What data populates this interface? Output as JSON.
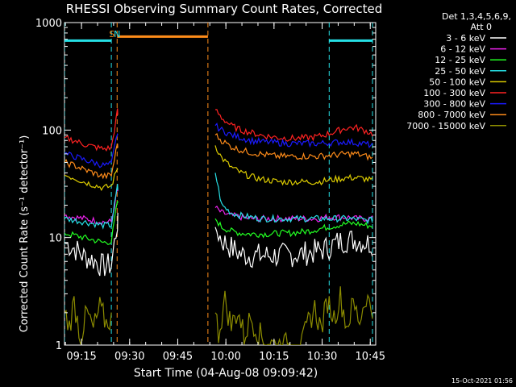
{
  "chart_data": {
    "type": "line",
    "title": "RHESSI Observing Summary Count Rates, Corrected",
    "xlabel": "Start Time (04-Aug-08 09:09:42)",
    "ylabel": "Corrected Count Rate (s⁻¹ detector⁻¹)",
    "x_unit": "minutes since 09:09:42",
    "xlim": [
      0,
      97
    ],
    "ylim": [
      1,
      1000
    ],
    "yscale": "log",
    "x_ticks": [
      {
        "v": 5.3,
        "label": "09:15"
      },
      {
        "v": 20.3,
        "label": "09:30"
      },
      {
        "v": 35.3,
        "label": "09:45"
      },
      {
        "v": 50.3,
        "label": "10:00"
      },
      {
        "v": 65.3,
        "label": "10:15"
      },
      {
        "v": 80.3,
        "label": "10:30"
      },
      {
        "v": 95.3,
        "label": "10:45"
      }
    ],
    "y_ticks": [
      {
        "v": 1,
        "label": "1"
      },
      {
        "v": 10,
        "label": "10"
      },
      {
        "v": 100,
        "label": "100"
      },
      {
        "v": 1000,
        "label": "1000"
      }
    ],
    "legend_header": [
      "Det 1,3,4,5,6,9,",
      "Att 0"
    ],
    "legend_position": "outside-right",
    "markers": [
      {
        "label": "S",
        "x": 14.8,
        "color": "#ff8c1a"
      },
      {
        "label": "N",
        "x": 16.4,
        "color": "#26e0e6"
      }
    ],
    "vlines": [
      {
        "x": 0.0,
        "color": "#26e0e6"
      },
      {
        "x": 14.6,
        "color": "#26e0e6"
      },
      {
        "x": 16.4,
        "color": "#ff8c1a"
      },
      {
        "x": 44.7,
        "color": "#ff8c1a"
      },
      {
        "x": 82.5,
        "color": "#26e0e6"
      },
      {
        "x": 96.0,
        "color": "#26e0e6"
      }
    ],
    "segments": [
      {
        "y": 680,
        "x0": 0,
        "x1": 14.6,
        "color": "#26e0e6"
      },
      {
        "y": 740,
        "x0": 16.4,
        "x1": 44.7,
        "color": "#ff8c1a"
      },
      {
        "y": 680,
        "x0": 82.5,
        "x1": 96.0,
        "color": "#26e0e6"
      }
    ],
    "series": [
      {
        "name": "3 - 6 keV",
        "color": "#ffffff",
        "x": [
          0,
          3,
          6,
          9,
          12,
          14.6,
          16.5,
          16.6,
          47,
          49,
          52,
          55,
          58,
          61,
          64,
          67,
          70,
          73,
          76,
          79,
          82,
          85,
          88,
          91,
          94,
          96
        ],
        "y": [
          9,
          8,
          6.7,
          6.2,
          5.4,
          5.6,
          14,
          13,
          12.5,
          9.5,
          8,
          7,
          6.8,
          6.8,
          6.8,
          6.8,
          6.9,
          7,
          7.2,
          7.5,
          8,
          9,
          9.5,
          9.5,
          9,
          8.8
        ]
      },
      {
        "name": "6 - 12 keV",
        "color": "#ee22ee",
        "x": [
          0,
          3,
          6,
          9,
          12,
          14.6,
          16.5,
          16.6,
          47,
          49,
          52,
          55,
          58,
          61,
          64,
          67,
          70,
          73,
          76,
          79,
          82,
          85,
          88,
          91,
          94,
          96
        ],
        "y": [
          16,
          15.5,
          15,
          14.5,
          14,
          14,
          28,
          27,
          19,
          17,
          16,
          15.5,
          15,
          15,
          15,
          15,
          15,
          15,
          15,
          15,
          15.5,
          15.5,
          15.5,
          15,
          15,
          15
        ]
      },
      {
        "name": "12 - 25 keV",
        "color": "#22ff22",
        "x": [
          0,
          3,
          6,
          9,
          12,
          14.6,
          16.5,
          16.6,
          47,
          49,
          52,
          55,
          58,
          61,
          64,
          67,
          70,
          73,
          76,
          79,
          82,
          85,
          88,
          91,
          94,
          96
        ],
        "y": [
          11,
          10.5,
          10,
          9.5,
          9,
          9.2,
          22,
          20,
          15,
          12.5,
          11.5,
          11,
          10.8,
          10.8,
          10.8,
          11,
          11,
          11.2,
          11.5,
          12,
          12.5,
          13,
          13.5,
          13.5,
          13,
          12.8
        ]
      },
      {
        "name": "25 - 50 keV",
        "color": "#26e0e6",
        "x": [
          0,
          3,
          6,
          9,
          12,
          14.6,
          16.5,
          16.6,
          47,
          49,
          52,
          55,
          58,
          61,
          64,
          67,
          70,
          73,
          76,
          79,
          82,
          85,
          88,
          91,
          94,
          96
        ],
        "y": [
          15,
          14.5,
          14,
          13.5,
          13,
          13,
          30,
          28,
          40,
          20,
          17,
          16,
          15.5,
          15,
          15,
          15,
          15,
          15,
          15,
          15,
          15,
          15,
          15,
          14.8,
          14.5,
          14.5
        ]
      },
      {
        "name": "50 - 100 keV",
        "color": "#ddcc00",
        "x": [
          0,
          3,
          6,
          9,
          12,
          14.6,
          16.5,
          16.6,
          47,
          49,
          52,
          55,
          58,
          61,
          64,
          67,
          70,
          73,
          76,
          79,
          82,
          85,
          88,
          91,
          94,
          96
        ],
        "y": [
          38,
          36,
          33,
          31,
          29,
          30,
          45,
          44,
          72,
          55,
          45,
          40,
          37,
          35,
          34,
          33,
          33,
          33,
          33,
          33,
          34,
          35,
          36,
          36,
          35,
          34
        ]
      },
      {
        "name": "100 - 300 keV",
        "color": "#ff2222",
        "x": [
          0,
          3,
          6,
          9,
          12,
          14.6,
          16.5,
          16.6,
          47,
          49,
          52,
          55,
          58,
          61,
          64,
          67,
          70,
          73,
          76,
          79,
          82,
          85,
          88,
          91,
          94,
          96
        ],
        "y": [
          85,
          80,
          74,
          70,
          67,
          68,
          150,
          140,
          155,
          130,
          110,
          100,
          95,
          90,
          87,
          85,
          84,
          84,
          85,
          87,
          92,
          98,
          105,
          105,
          98,
          92
        ]
      },
      {
        "name": "300 - 800 keV",
        "color": "#1a1aff",
        "x": [
          0,
          3,
          6,
          9,
          12,
          14.6,
          16.5,
          16.6,
          47,
          49,
          52,
          55,
          58,
          61,
          64,
          67,
          70,
          73,
          76,
          79,
          82,
          85,
          88,
          91,
          94,
          96
        ],
        "y": [
          60,
          57,
          53,
          50,
          47,
          48,
          95,
          90,
          110,
          100,
          90,
          85,
          80,
          78,
          77,
          76,
          75,
          75,
          75,
          75,
          76,
          77,
          78,
          76,
          74,
          72
        ]
      },
      {
        "name": "800 - 7000 keV",
        "color": "#ff8c1a",
        "x": [
          0,
          3,
          6,
          9,
          12,
          14.6,
          16.5,
          16.6,
          47,
          49,
          52,
          55,
          58,
          61,
          64,
          67,
          70,
          73,
          76,
          79,
          82,
          85,
          88,
          91,
          94,
          96
        ],
        "y": [
          50,
          47,
          43,
          40,
          37,
          38,
          75,
          72,
          90,
          80,
          70,
          65,
          62,
          60,
          58,
          57,
          57,
          57,
          57,
          57,
          58,
          59,
          60,
          60,
          57,
          55
        ]
      },
      {
        "name": "7000 - 15000 keV",
        "color": "#8c8c00",
        "x": [
          0,
          1.5,
          3,
          5,
          7,
          9,
          11,
          13,
          14.6,
          47,
          48,
          50,
          52,
          54,
          56,
          58,
          60,
          62,
          66,
          70,
          74,
          76,
          78,
          80,
          82,
          84,
          86,
          88,
          90,
          92,
          94,
          96
        ],
        "y": [
          2,
          1.5,
          2.5,
          1.2,
          2,
          1.4,
          2.2,
          1.6,
          1.8,
          2,
          1.3,
          2.6,
          1.5,
          2.1,
          1.2,
          1.8,
          1.4,
          1.1,
          1,
          1,
          1,
          1.6,
          2.2,
          1.4,
          2.6,
          1.8,
          2.8,
          1.5,
          2.4,
          1.7,
          2.9,
          2
        ]
      }
    ]
  },
  "footer": {
    "timestamp": "15-Oct-2021 01:56"
  }
}
